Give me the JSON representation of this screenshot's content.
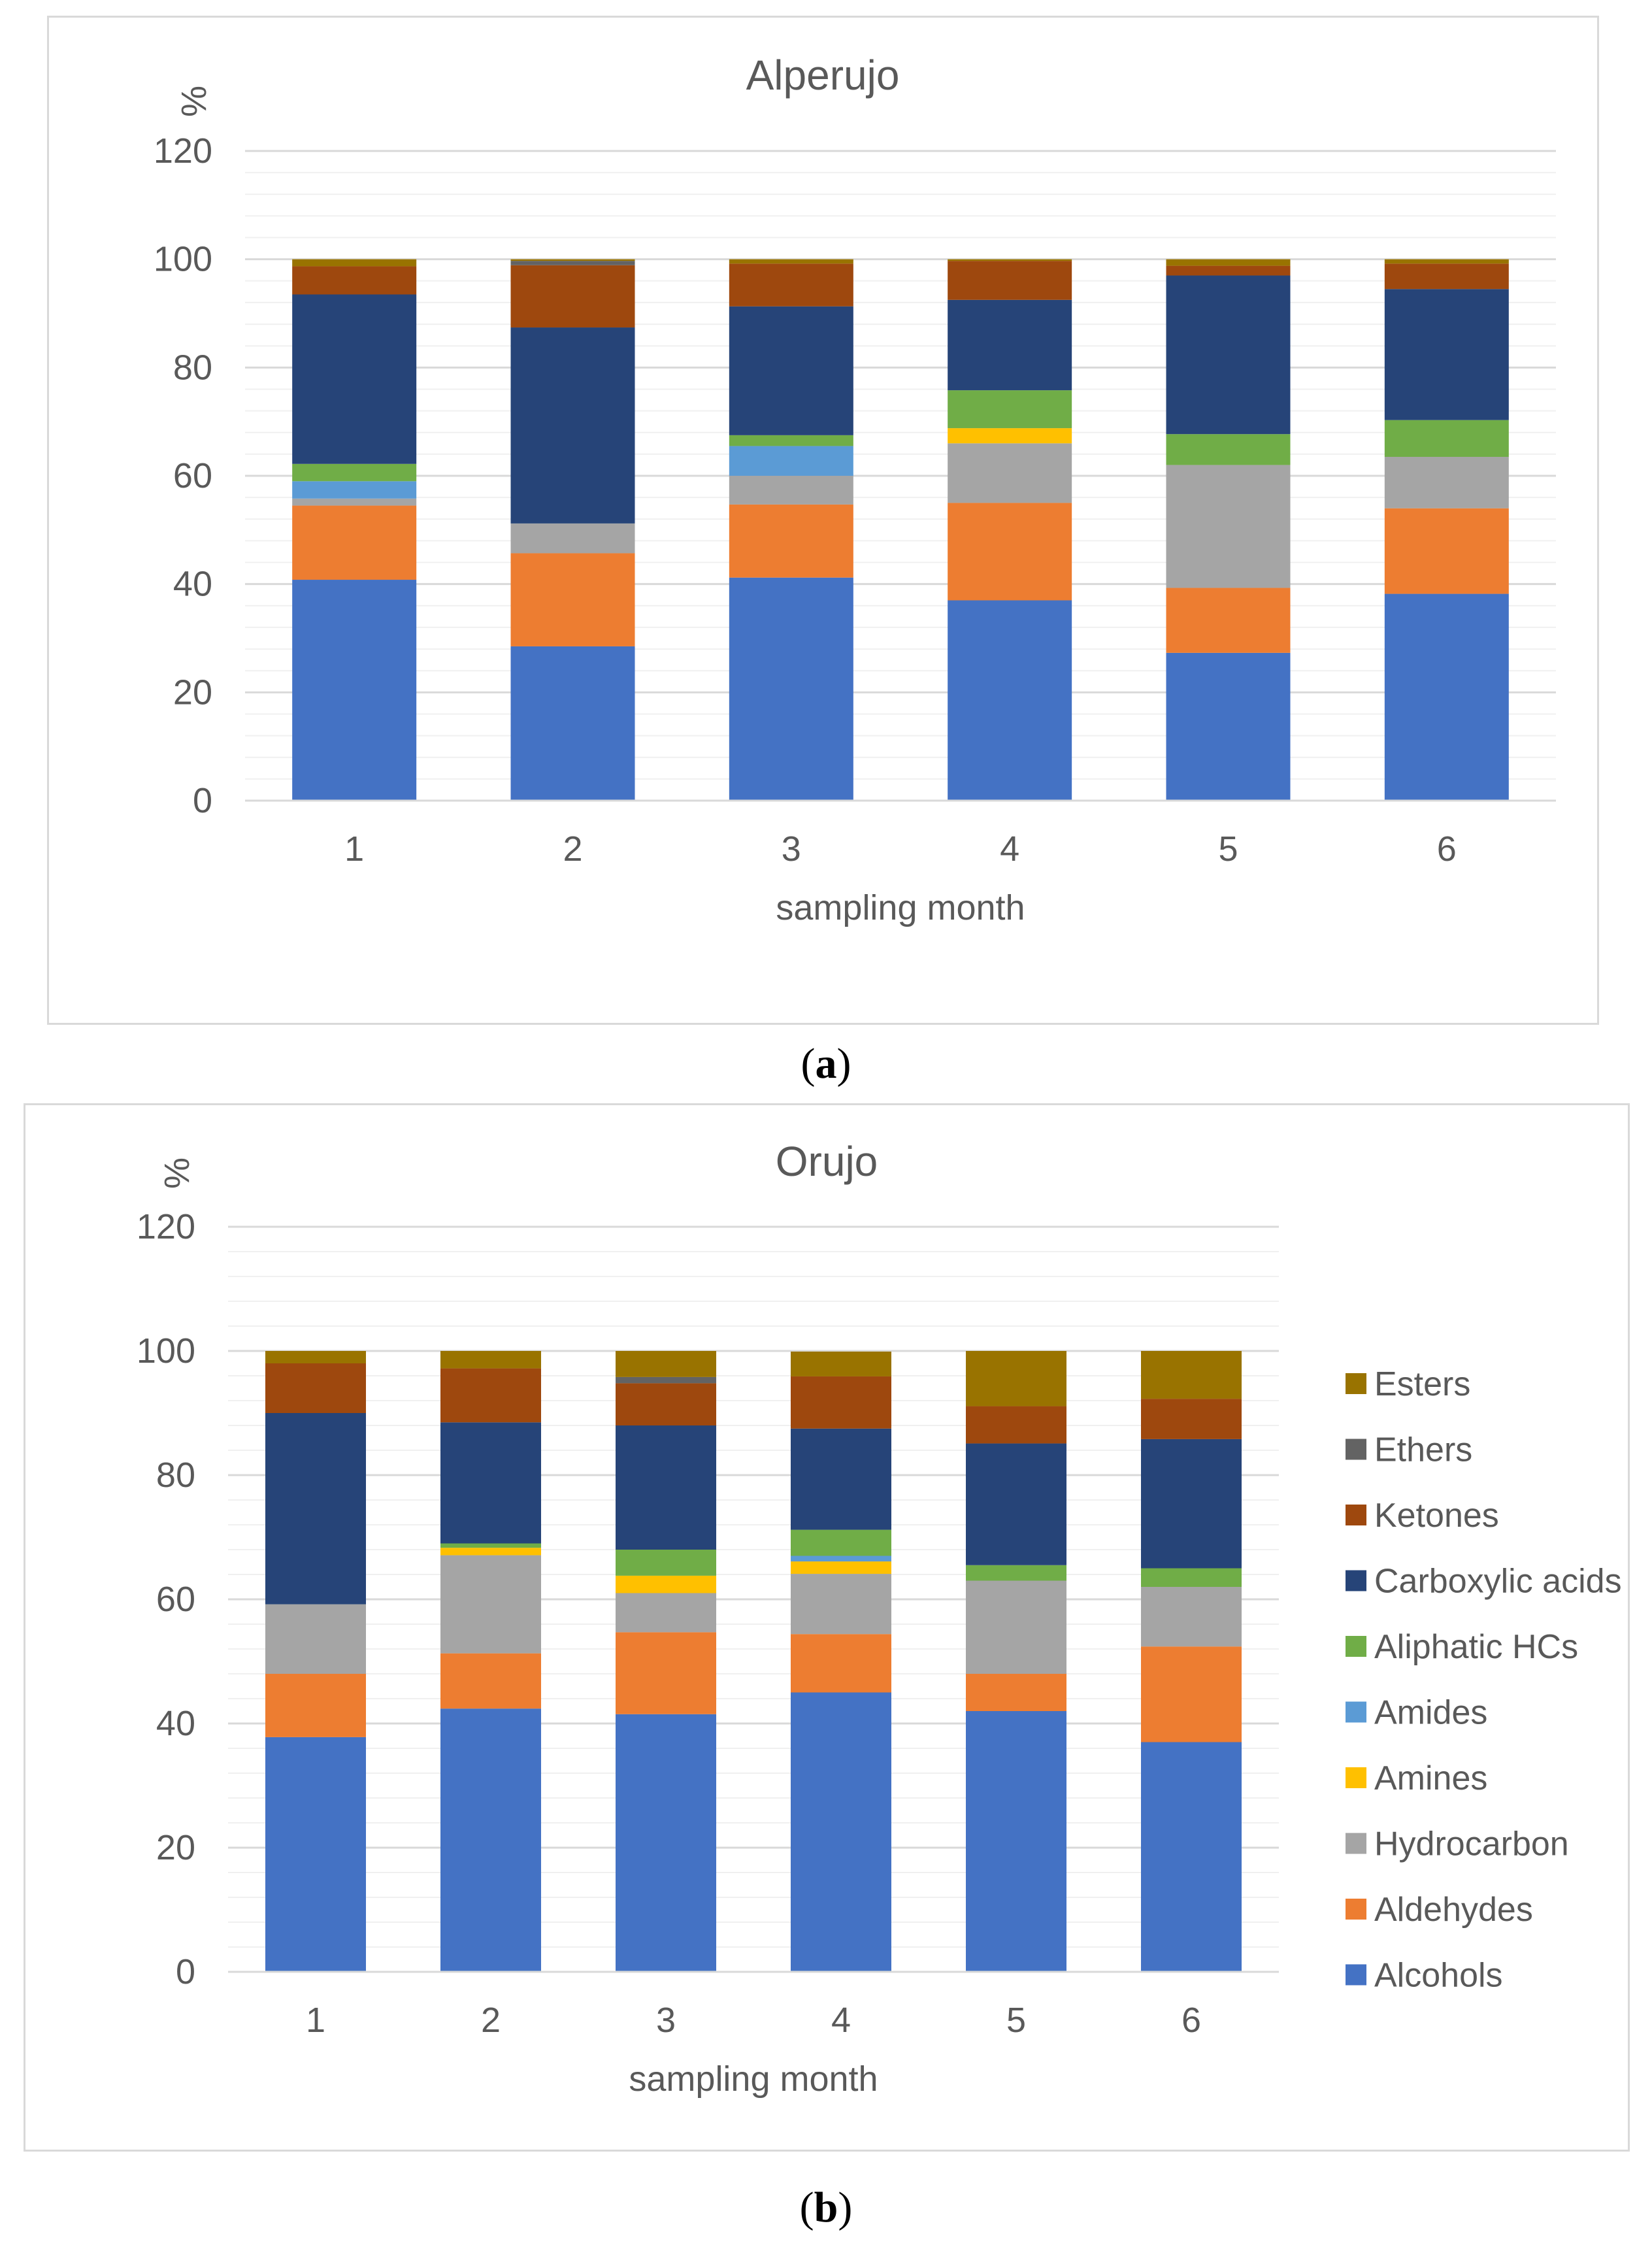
{
  "captions": {
    "a": "a",
    "b": "b"
  },
  "chart_data": [
    {
      "type": "bar",
      "stacked": true,
      "title": "Alperujo",
      "xlabel": "sampling month",
      "ylabel": "%",
      "ylim": [
        0,
        120
      ],
      "yticks": [
        0,
        20,
        40,
        60,
        80,
        100,
        120
      ],
      "grid": true,
      "legend": "none",
      "categories": [
        "1",
        "2",
        "3",
        "4",
        "5",
        "6"
      ],
      "series": [
        {
          "name": "Alcohols",
          "color": "#4472C4",
          "values": [
            40.8,
            28.5,
            41.2,
            37.0,
            27.3,
            38.2
          ]
        },
        {
          "name": "Aldehydes",
          "color": "#ED7D31",
          "values": [
            13.7,
            17.2,
            13.5,
            18.0,
            12.0,
            15.8
          ]
        },
        {
          "name": "Hydrocarbon",
          "color": "#A5A5A5",
          "values": [
            1.3,
            5.5,
            5.3,
            11.0,
            22.7,
            9.5
          ]
        },
        {
          "name": "Amines",
          "color": "#FFC000",
          "values": [
            0,
            0,
            0,
            2.8,
            0,
            0
          ]
        },
        {
          "name": "Amides",
          "color": "#5B9BD5",
          "values": [
            3.2,
            0,
            5.5,
            0,
            0,
            0
          ]
        },
        {
          "name": "Aliphatic HCs",
          "color": "#70AD47",
          "values": [
            3.2,
            0,
            2.0,
            7.0,
            5.7,
            6.8
          ]
        },
        {
          "name": "Carboxylic acids",
          "color": "#264478",
          "values": [
            31.3,
            36.2,
            23.8,
            16.7,
            29.3,
            24.2
          ]
        },
        {
          "name": "Ketones",
          "color": "#9E480E",
          "values": [
            5.2,
            11.5,
            7.9,
            7.2,
            1.8,
            4.7
          ]
        },
        {
          "name": "Ethers",
          "color": "#636363",
          "values": [
            0,
            0.8,
            0,
            0,
            0,
            0
          ]
        },
        {
          "name": "Esters",
          "color": "#997300",
          "values": [
            1.3,
            0.3,
            0.8,
            0.3,
            1.2,
            0.8
          ]
        }
      ]
    },
    {
      "type": "bar",
      "stacked": true,
      "title": "Orujo",
      "xlabel": "sampling month",
      "ylabel": "%",
      "ylim": [
        0,
        120
      ],
      "yticks": [
        0,
        20,
        40,
        60,
        80,
        100,
        120
      ],
      "grid": true,
      "legend": "right",
      "categories": [
        "1",
        "2",
        "3",
        "4",
        "5",
        "6"
      ],
      "series": [
        {
          "name": "Alcohols",
          "color": "#4472C4",
          "values": [
            37.8,
            42.4,
            41.5,
            45.0,
            42.0,
            37.0
          ]
        },
        {
          "name": " Aldehydes",
          "color": "#ED7D31",
          "values": [
            10.2,
            8.9,
            13.2,
            9.4,
            6.0,
            15.4
          ]
        },
        {
          "name": "Hydrocarbon",
          "color": "#A5A5A5",
          "values": [
            11.2,
            15.8,
            6.3,
            9.7,
            15.0,
            9.6
          ]
        },
        {
          "name": "Amines",
          "color": "#FFC000",
          "values": [
            0,
            1.2,
            2.8,
            2.0,
            0,
            0
          ]
        },
        {
          "name": "Amides",
          "color": "#5B9BD5",
          "values": [
            0,
            0,
            0,
            0.9,
            0,
            0
          ]
        },
        {
          "name": "Aliphatic HCs",
          "color": "#70AD47",
          "values": [
            0,
            0.7,
            4.2,
            4.2,
            2.5,
            3.0
          ]
        },
        {
          "name": "Carboxylic acids",
          "color": "#264478",
          "values": [
            30.8,
            19.5,
            20.0,
            16.3,
            19.6,
            20.8
          ]
        },
        {
          "name": "Ketones",
          "color": "#9E480E",
          "values": [
            8.0,
            8.7,
            6.8,
            8.4,
            6.0,
            6.5
          ]
        },
        {
          "name": "Ethers",
          "color": "#636363",
          "values": [
            0,
            0,
            1.0,
            0,
            0,
            0
          ]
        },
        {
          "name": "Esters",
          "color": "#997300",
          "values": [
            2.0,
            2.8,
            4.2,
            4.0,
            8.9,
            7.7
          ]
        }
      ]
    }
  ]
}
